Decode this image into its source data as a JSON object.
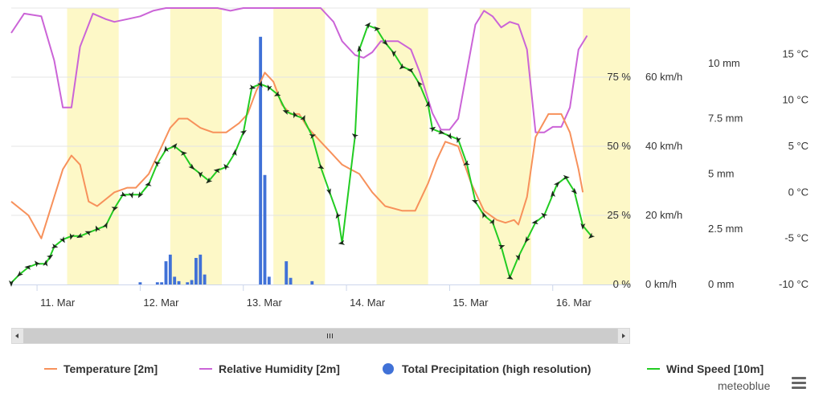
{
  "chart_data": {
    "type": "line",
    "x_ticks": [
      "11. Mar",
      "12. Mar",
      "13. Mar",
      "14. Mar",
      "15. Mar",
      "16. Mar"
    ],
    "x_unit": "hours from 11. Mar 00:00",
    "x_range": [
      -6,
      138
    ],
    "daylight_bands": [
      [
        7,
        19
      ],
      [
        31,
        43
      ],
      [
        55,
        67
      ],
      [
        79,
        91
      ],
      [
        103,
        115
      ],
      [
        127,
        139
      ]
    ],
    "axes": {
      "humidity": {
        "ticks": [
          "0 %",
          "25 %",
          "50 %",
          "75 %"
        ],
        "range": [
          0,
          100
        ]
      },
      "wind": {
        "ticks": [
          "0 km/h",
          "20 km/h",
          "40 km/h",
          "60 km/h"
        ],
        "range": [
          0,
          80
        ]
      },
      "precipitation": {
        "ticks": [
          "0 mm",
          "2.5 mm",
          "5 mm",
          "7.5 mm",
          "10 mm"
        ],
        "range": [
          0,
          12.5
        ]
      },
      "temperature": {
        "ticks": [
          "-10 °C",
          "-5 °C",
          "0 °C",
          "5 °C",
          "10 °C",
          "15 °C"
        ],
        "range": [
          -10,
          20
        ]
      }
    },
    "series": [
      {
        "name": "Temperature [2m]",
        "color": "#f7915b",
        "axis": "temperature",
        "points": [
          [
            -6,
            -1
          ],
          [
            -2,
            -2.5
          ],
          [
            1,
            -5
          ],
          [
            3,
            -2
          ],
          [
            6,
            2.5
          ],
          [
            8,
            4
          ],
          [
            10,
            3
          ],
          [
            12,
            -1
          ],
          [
            14,
            -1.5
          ],
          [
            18,
            0
          ],
          [
            21,
            0.5
          ],
          [
            23,
            0.5
          ],
          [
            26,
            2
          ],
          [
            29,
            5
          ],
          [
            31,
            7
          ],
          [
            33,
            8
          ],
          [
            35,
            8
          ],
          [
            38,
            7
          ],
          [
            41,
            6.5
          ],
          [
            44,
            6.5
          ],
          [
            47,
            7.5
          ],
          [
            49,
            8.5
          ],
          [
            51,
            11
          ],
          [
            53,
            13
          ],
          [
            55,
            12
          ],
          [
            57,
            9.5
          ],
          [
            59,
            8.5
          ],
          [
            61,
            8.5
          ],
          [
            63,
            7
          ],
          [
            66,
            5.5
          ],
          [
            68,
            4.5
          ],
          [
            71,
            3
          ],
          [
            73,
            2.5
          ],
          [
            75,
            2
          ],
          [
            78,
            0
          ],
          [
            81,
            -1.5
          ],
          [
            85,
            -2
          ],
          [
            88,
            -2
          ],
          [
            91,
            1
          ],
          [
            93,
            3.5
          ],
          [
            95,
            5.5
          ],
          [
            98,
            5
          ],
          [
            101,
            1
          ],
          [
            104,
            -2
          ],
          [
            107,
            -3
          ],
          [
            109,
            -3.3
          ],
          [
            111,
            -3
          ],
          [
            112,
            -3.5
          ],
          [
            114,
            -0.5
          ],
          [
            116,
            6
          ],
          [
            119,
            8.5
          ],
          [
            122,
            8.5
          ],
          [
            124,
            6.5
          ],
          [
            126,
            2.5
          ],
          [
            127,
            0
          ]
        ]
      },
      {
        "name": "Relative Humidity [2m]",
        "color": "#cb64d7",
        "axis": "humidity",
        "points": [
          [
            -6,
            91
          ],
          [
            -3,
            98
          ],
          [
            1,
            97
          ],
          [
            4,
            81
          ],
          [
            6,
            64
          ],
          [
            8,
            64
          ],
          [
            10,
            86
          ],
          [
            13,
            98
          ],
          [
            16,
            96
          ],
          [
            18,
            95
          ],
          [
            21,
            96
          ],
          [
            24,
            97
          ],
          [
            27,
            99
          ],
          [
            30,
            100
          ],
          [
            33,
            100
          ],
          [
            36,
            100
          ],
          [
            39,
            100
          ],
          [
            42,
            100
          ],
          [
            45,
            99
          ],
          [
            48,
            100
          ],
          [
            51,
            100
          ],
          [
            54,
            100
          ],
          [
            57,
            100
          ],
          [
            60,
            100
          ],
          [
            63,
            100
          ],
          [
            66,
            100
          ],
          [
            69,
            95
          ],
          [
            71,
            88
          ],
          [
            74,
            83
          ],
          [
            76,
            82
          ],
          [
            78,
            84
          ],
          [
            80,
            88
          ],
          [
            84,
            88
          ],
          [
            87,
            85
          ],
          [
            89,
            77
          ],
          [
            92,
            62
          ],
          [
            94,
            56
          ],
          [
            96,
            56
          ],
          [
            98,
            60
          ],
          [
            100,
            77
          ],
          [
            102,
            94
          ],
          [
            104,
            99
          ],
          [
            106,
            97
          ],
          [
            108,
            93
          ],
          [
            110,
            95
          ],
          [
            112,
            94
          ],
          [
            114,
            85
          ],
          [
            116,
            55
          ],
          [
            118,
            55
          ],
          [
            120,
            57
          ],
          [
            122,
            57
          ],
          [
            124,
            64
          ],
          [
            126,
            85
          ],
          [
            128,
            90
          ]
        ]
      },
      {
        "name": "Total Precipitation (high resolution)",
        "color": "#4071d7",
        "axis": "precipitation",
        "bars": [
          [
            24,
            0.1
          ],
          [
            28,
            0.1
          ],
          [
            29,
            0.1
          ],
          [
            30,
            1.05
          ],
          [
            31,
            1.35
          ],
          [
            32,
            0.35
          ],
          [
            33,
            0.15
          ],
          [
            35,
            0.1
          ],
          [
            36,
            0.2
          ],
          [
            37,
            1.2
          ],
          [
            38,
            1.35
          ],
          [
            39,
            0.45
          ],
          [
            52,
            11.2
          ],
          [
            53,
            4.95
          ],
          [
            54,
            0.35
          ],
          [
            58,
            1.05
          ],
          [
            59,
            0.3
          ],
          [
            64,
            0.15
          ]
        ]
      },
      {
        "name": "Wind Speed [10m]",
        "color": "#22cc22",
        "axis": "wind",
        "points": [
          [
            -6,
            0.5
          ],
          [
            -4,
            3
          ],
          [
            -2,
            5
          ],
          [
            0,
            6
          ],
          [
            2,
            6
          ],
          [
            3,
            8
          ],
          [
            4,
            11
          ],
          [
            6,
            13
          ],
          [
            8,
            14
          ],
          [
            10,
            14
          ],
          [
            12,
            15
          ],
          [
            14,
            16
          ],
          [
            16,
            17
          ],
          [
            18,
            22
          ],
          [
            20,
            26
          ],
          [
            22,
            26
          ],
          [
            24,
            26
          ],
          [
            26,
            29
          ],
          [
            28,
            35
          ],
          [
            30,
            39
          ],
          [
            32,
            40
          ],
          [
            34,
            38
          ],
          [
            36,
            34
          ],
          [
            38,
            32
          ],
          [
            40,
            30
          ],
          [
            42,
            33
          ],
          [
            44,
            34
          ],
          [
            46,
            38
          ],
          [
            48,
            44
          ],
          [
            50,
            57
          ],
          [
            52,
            58
          ],
          [
            54,
            57
          ],
          [
            56,
            55
          ],
          [
            58,
            50
          ],
          [
            60,
            49
          ],
          [
            62,
            48
          ],
          [
            64,
            43
          ],
          [
            66,
            34
          ],
          [
            68,
            27
          ],
          [
            70,
            20
          ],
          [
            71,
            12
          ],
          [
            74,
            43
          ],
          [
            75,
            68
          ],
          [
            77,
            75
          ],
          [
            79,
            74
          ],
          [
            81,
            70
          ],
          [
            83,
            67
          ],
          [
            85,
            63
          ],
          [
            87,
            62
          ],
          [
            89,
            58
          ],
          [
            91,
            52
          ],
          [
            92,
            45
          ],
          [
            94,
            44
          ],
          [
            96,
            43
          ],
          [
            98,
            42
          ],
          [
            100,
            35
          ],
          [
            102,
            24
          ],
          [
            104,
            20
          ],
          [
            106,
            18
          ],
          [
            108,
            11
          ],
          [
            110,
            2
          ],
          [
            112,
            8
          ],
          [
            114,
            13
          ],
          [
            116,
            18
          ],
          [
            118,
            20
          ],
          [
            120,
            26
          ],
          [
            121,
            29
          ],
          [
            123,
            31
          ],
          [
            125,
            27
          ],
          [
            127,
            17
          ],
          [
            129,
            14
          ]
        ]
      }
    ]
  },
  "legend": {
    "temperature": "Temperature [2m]",
    "humidity": "Relative Humidity [2m]",
    "precipitation": "Total Precipitation (high resolution)",
    "wind": "Wind Speed [10m]"
  },
  "colors": {
    "temperature": "#f7915b",
    "humidity": "#cb64d7",
    "precipitation": "#4071d7",
    "wind": "#22cc22",
    "daylight": "#fdf8c7",
    "arrow": "#1a2a1a"
  },
  "brand": "meteoblue",
  "scrollbar": {
    "grip_label": "III"
  },
  "icons": {
    "menu": "menu-icon"
  }
}
